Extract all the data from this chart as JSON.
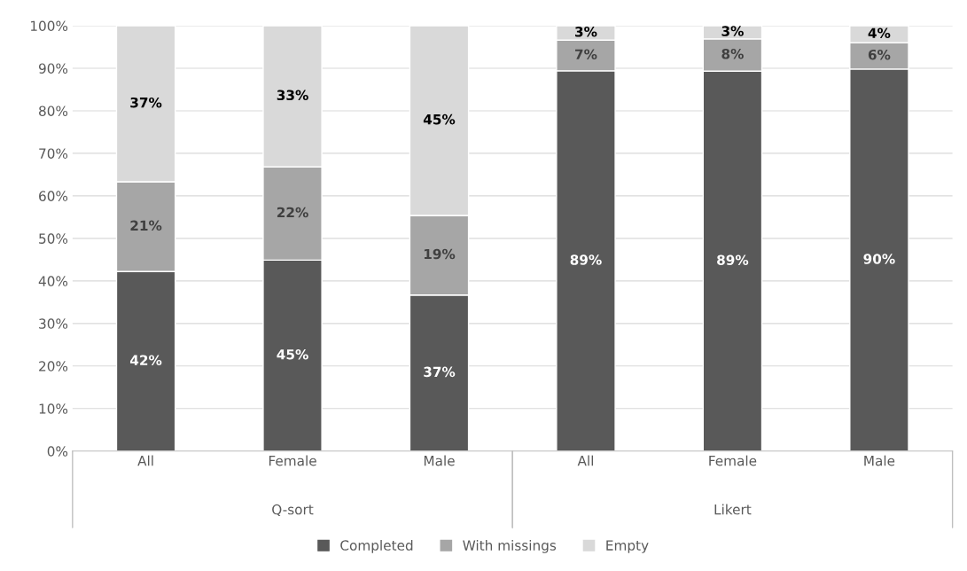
{
  "chart_data": {
    "type": "bar",
    "stacked": true,
    "categories": [
      "All",
      "Female",
      "Male",
      "All",
      "Female",
      "Male"
    ],
    "annotations": [
      "Q-sort",
      "Likert"
    ],
    "series": [
      {
        "name": "Completed",
        "color": "#595959",
        "values": [
          42.2,
          44.9,
          36.7,
          89.4,
          89.3,
          89.8
        ],
        "value_labels": [
          "42%",
          "45%",
          "37%",
          "89%",
          "89%",
          "90%"
        ]
      },
      {
        "name": "With missings",
        "color": "#a6a6a6",
        "values": [
          21.1,
          21.9,
          18.7,
          7.2,
          7.6,
          6.2
        ],
        "value_labels": [
          "21%",
          "22%",
          "19%",
          "7%",
          "8%",
          "6%"
        ]
      },
      {
        "name": "Empty",
        "color": "#d9d9d9",
        "values": [
          36.7,
          33.2,
          44.6,
          3.4,
          3.1,
          4.0
        ],
        "value_labels": [
          "37%",
          "33%",
          "45%",
          "3%",
          "3%",
          "4%"
        ]
      }
    ],
    "ylim": [
      0,
      100
    ],
    "yticks": [
      {
        "value": 0,
        "label": "0%"
      },
      {
        "value": 10,
        "label": "10%"
      },
      {
        "value": 20,
        "label": "20%"
      },
      {
        "value": 30,
        "label": "30%"
      },
      {
        "value": 40,
        "label": "40%"
      },
      {
        "value": 50,
        "label": "50%"
      },
      {
        "value": 60,
        "label": "60%"
      },
      {
        "value": 70,
        "label": "70%"
      },
      {
        "value": 80,
        "label": "80%"
      },
      {
        "value": 90,
        "label": "90%"
      },
      {
        "value": 100,
        "label": "100%"
      }
    ],
    "grid": "y",
    "legend": "bottom"
  }
}
